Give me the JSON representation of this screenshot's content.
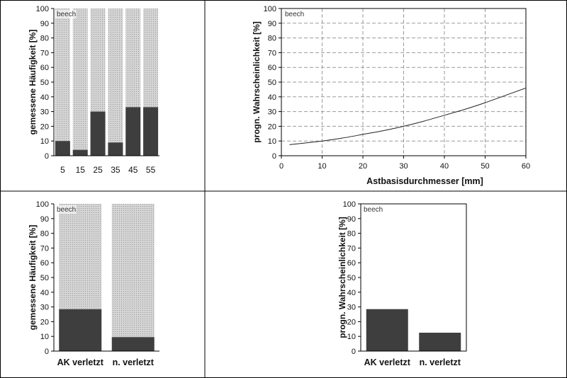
{
  "chart_data": [
    {
      "type": "bar",
      "stacked_to": 100,
      "note": "beech",
      "ylabel": "gemessene Häufigkeit [%]",
      "xlabel": "",
      "ylim": [
        0,
        100
      ],
      "yticks": [
        0,
        10,
        20,
        30,
        40,
        50,
        60,
        70,
        80,
        90,
        100
      ],
      "categories": [
        "5",
        "15",
        "25",
        "35",
        "45",
        "55"
      ],
      "values": [
        10,
        4,
        30,
        9,
        33,
        33
      ],
      "colors": {
        "bar": "#3e3e3e",
        "remainder": "#d9d9d9"
      }
    },
    {
      "type": "line",
      "note": "beech",
      "ylabel": "progn. Wahrscheinlichkeit [%]",
      "xlabel": "Astbasisdurchmesser [mm]",
      "xlim": [
        0,
        60
      ],
      "ylim": [
        0,
        100
      ],
      "xticks": [
        0,
        10,
        20,
        30,
        40,
        50,
        60
      ],
      "yticks": [
        0,
        10,
        20,
        30,
        40,
        50,
        60,
        70,
        80,
        90,
        100
      ],
      "grid": true,
      "x": [
        2,
        5,
        10,
        15,
        20,
        25,
        30,
        35,
        40,
        45,
        50,
        55,
        60
      ],
      "y": [
        7.5,
        8.4,
        10,
        12,
        14.5,
        17,
        20,
        23.5,
        27.5,
        31.5,
        36,
        41,
        46
      ],
      "colors": {
        "line": "#222222"
      }
    },
    {
      "type": "bar",
      "stacked_to": 100,
      "note": "beech",
      "ylabel": "gemessene Häufigkeit [%]",
      "xlabel": "",
      "ylim": [
        0,
        100
      ],
      "yticks": [
        0,
        10,
        20,
        30,
        40,
        50,
        60,
        70,
        80,
        90,
        100
      ],
      "categories": [
        "AK verletzt",
        "n. verletzt"
      ],
      "values": [
        28.5,
        9.5
      ],
      "colors": {
        "bar": "#3e3e3e",
        "remainder": "#d9d9d9"
      }
    },
    {
      "type": "bar",
      "note": "beech",
      "ylabel": "progn. Wahrscheinlichkeit [%]",
      "xlabel": "",
      "ylim": [
        0,
        100
      ],
      "yticks": [
        0,
        10,
        20,
        30,
        40,
        50,
        60,
        70,
        80,
        90,
        100
      ],
      "categories": [
        "AK verletzt",
        "n. verletzt"
      ],
      "values": [
        28.5,
        12.5
      ],
      "colors": {
        "bar": "#3e3e3e"
      }
    }
  ]
}
